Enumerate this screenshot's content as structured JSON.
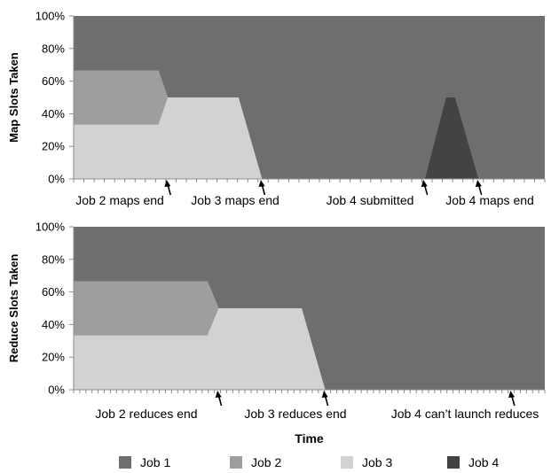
{
  "chart_data": [
    {
      "type": "area",
      "stacked": true,
      "ylabel": "Map Slots Taken",
      "xlabel": "",
      "ylim": [
        0,
        100
      ],
      "y_ticks": [
        "0%",
        "20%",
        "40%",
        "60%",
        "80%",
        "100%"
      ],
      "grid": false,
      "x_range": [
        0,
        100
      ],
      "x": [
        0,
        18,
        20,
        35,
        40,
        74.5,
        79,
        81,
        86,
        100
      ],
      "series": [
        {
          "name": "Job 3",
          "color": "#d2d2d2",
          "values": [
            33.3,
            33.3,
            50,
            50,
            0,
            0,
            0,
            0,
            0,
            0
          ]
        },
        {
          "name": "Job 2",
          "color": "#9e9e9e",
          "values": [
            33.3,
            33.3,
            0,
            0,
            0,
            0,
            0,
            0,
            0,
            0
          ]
        },
        {
          "name": "Job 4",
          "color": "#434343",
          "values": [
            0,
            0,
            0,
            0,
            0,
            0,
            50,
            50,
            0,
            0
          ]
        },
        {
          "name": "Job 1",
          "color": "#6e6e6e",
          "values": [
            33.4,
            33.4,
            50,
            50,
            100,
            100,
            50,
            50,
            100,
            100
          ]
        }
      ],
      "annotations": [
        {
          "text": "Job 2 maps end",
          "x": 20
        },
        {
          "text": "Job 3 maps end",
          "x": 40
        },
        {
          "text": "Job 4 submitted",
          "x": 74.5
        },
        {
          "text": "Job 4 maps end",
          "x": 86
        }
      ]
    },
    {
      "type": "area",
      "stacked": true,
      "ylabel": "Reduce Slots Taken",
      "xlabel": "Time",
      "ylim": [
        0,
        100
      ],
      "y_ticks": [
        "0%",
        "20%",
        "40%",
        "60%",
        "80%",
        "100%"
      ],
      "grid": false,
      "x_range": [
        0,
        100
      ],
      "x": [
        0,
        28.4,
        30.8,
        48.4,
        53.4,
        100
      ],
      "series": [
        {
          "name": "Job 3",
          "color": "#d2d2d2",
          "values": [
            33.3,
            33.3,
            50,
            50,
            0,
            0
          ]
        },
        {
          "name": "Job 2",
          "color": "#9e9e9e",
          "values": [
            33.3,
            33.3,
            0,
            0,
            0,
            0
          ]
        },
        {
          "name": "Job 4",
          "color": "#434343",
          "values": [
            0,
            0,
            0,
            0,
            0,
            0
          ]
        },
        {
          "name": "Job 1",
          "color": "#6e6e6e",
          "values": [
            33.4,
            33.4,
            50,
            50,
            100,
            100
          ]
        }
      ],
      "annotations": [
        {
          "text": "Job 2 reduces end",
          "x": 30.8
        },
        {
          "text": "Job 3 reduces end",
          "x": 53.4
        },
        {
          "text": "Job 4 can’t launch reduces",
          "x": 93
        }
      ]
    }
  ],
  "legend": {
    "placement": "bottom",
    "items": [
      {
        "label": "Job 1",
        "color": "#6e6e6e"
      },
      {
        "label": "Job 2",
        "color": "#9e9e9e"
      },
      {
        "label": "Job 3",
        "color": "#d2d2d2"
      },
      {
        "label": "Job 4",
        "color": "#434343"
      }
    ]
  }
}
